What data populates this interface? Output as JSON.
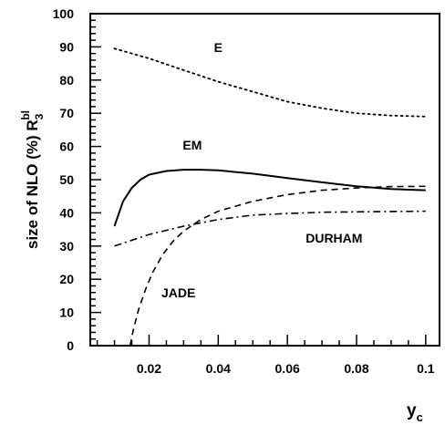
{
  "chart_data": {
    "type": "line",
    "xlabel": "y",
    "xlabel_sub": "c",
    "ylabel": "size of NLO (%) R",
    "ylabel_sub": "3",
    "ylabel_sup": "bl",
    "xlim": [
      0.003,
      0.104
    ],
    "ylim": [
      0,
      100
    ],
    "x_ticks": [
      0.02,
      0.04,
      0.06,
      0.08,
      0.1
    ],
    "x_tick_labels": [
      "0.02",
      "0.04",
      "0.06",
      "0.08",
      "0.1"
    ],
    "x_minor_step": 0.005,
    "y_ticks": [
      0,
      10,
      20,
      30,
      40,
      50,
      60,
      70,
      80,
      90,
      100
    ],
    "y_tick_labels": [
      "0",
      "10",
      "20",
      "30",
      "40",
      "50",
      "60",
      "70",
      "80",
      "90",
      "100"
    ],
    "y_minor_step": 2,
    "grid": false,
    "series": [
      {
        "name": "E",
        "style": "dotted",
        "x": [
          0.01,
          0.02,
          0.03,
          0.04,
          0.05,
          0.06,
          0.07,
          0.08,
          0.09,
          0.1
        ],
        "y": [
          89.5,
          86.5,
          83,
          79.5,
          76.5,
          73.5,
          71.5,
          70,
          69.3,
          69
        ]
      },
      {
        "name": "EM",
        "style": "solid",
        "x": [
          0.01,
          0.0125,
          0.015,
          0.0175,
          0.02,
          0.025,
          0.03,
          0.035,
          0.04,
          0.05,
          0.06,
          0.07,
          0.08,
          0.09,
          0.1
        ],
        "y": [
          36,
          43.5,
          47.5,
          50,
          51.5,
          52.6,
          53,
          53,
          52.8,
          51.8,
          50.5,
          49.2,
          48,
          47.2,
          46.8
        ]
      },
      {
        "name": "DURHAM",
        "style": "dash-dot",
        "x": [
          0.01,
          0.02,
          0.03,
          0.04,
          0.05,
          0.06,
          0.07,
          0.08,
          0.09,
          0.1
        ],
        "y": [
          30,
          33.5,
          36,
          38,
          39.3,
          39.8,
          40.2,
          40.3,
          40.4,
          40.5
        ]
      },
      {
        "name": "JADE",
        "style": "dashed",
        "x": [
          0.0145,
          0.0155,
          0.017,
          0.019,
          0.021,
          0.024,
          0.027,
          0.03,
          0.035,
          0.04,
          0.05,
          0.06,
          0.07,
          0.08,
          0.09,
          0.1
        ],
        "y": [
          0,
          5,
          11,
          17,
          22,
          27.5,
          31.5,
          34.5,
          38,
          40.5,
          43.5,
          45.5,
          46.8,
          47.5,
          47.9,
          48
        ]
      }
    ],
    "annotations": [
      {
        "text": "E",
        "x": 0.04,
        "y": 88.5
      },
      {
        "text": "EM",
        "x": 0.0325,
        "y": 59
      },
      {
        "text": "DURHAM",
        "x": 0.0735,
        "y": 31
      },
      {
        "text": "JADE",
        "x": 0.0285,
        "y": 14.5
      }
    ]
  }
}
